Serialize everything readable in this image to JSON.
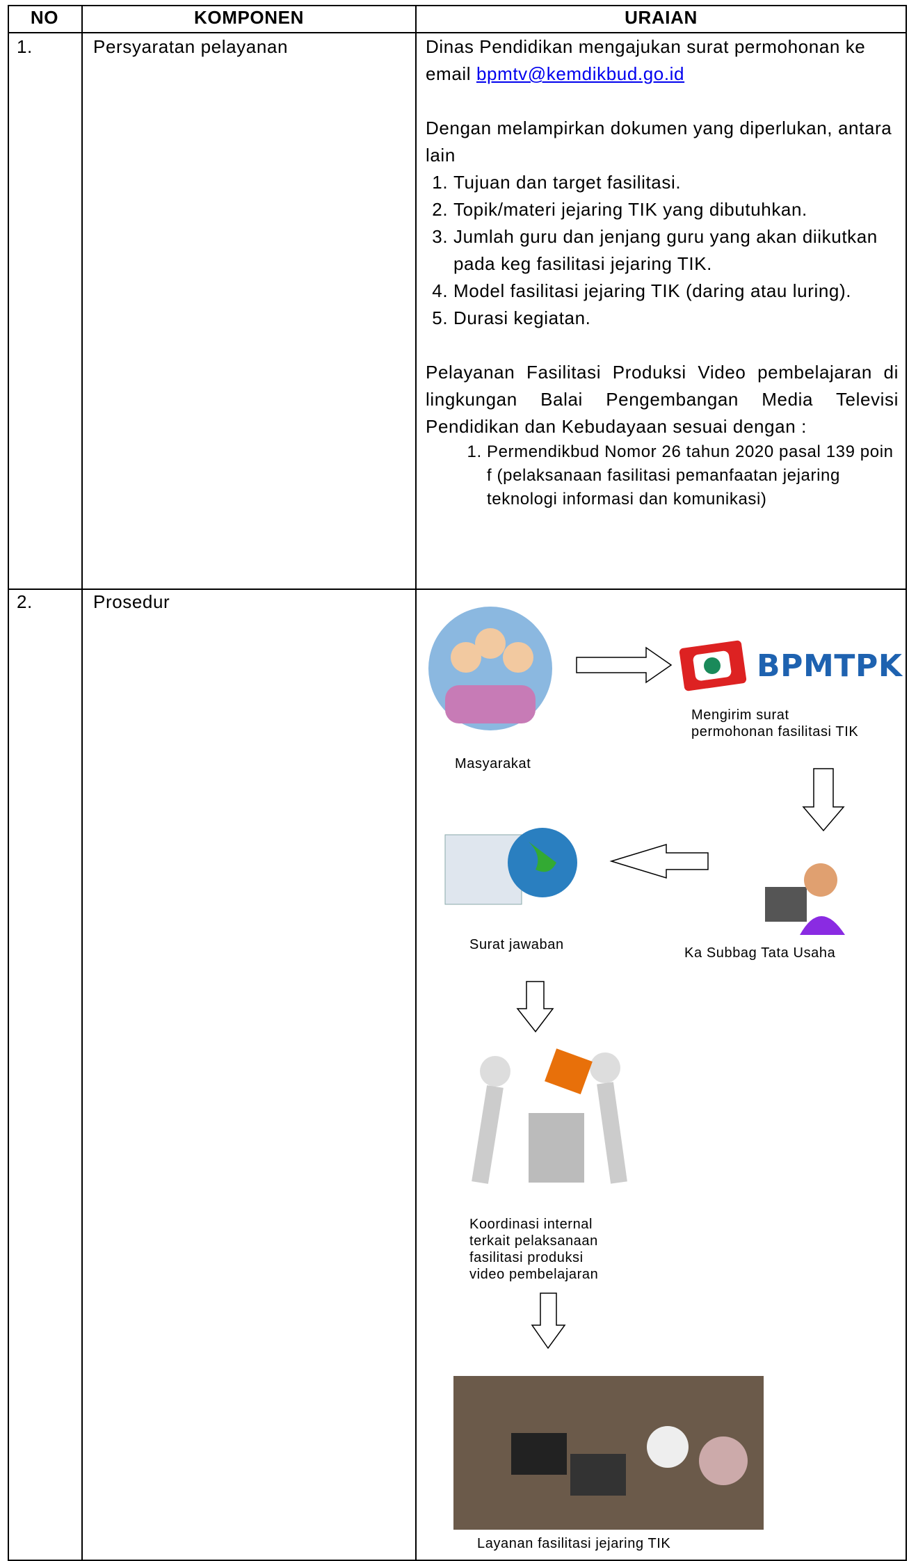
{
  "header": {
    "no": "NO",
    "komponen": "KOMPONEN",
    "uraian": "URAIAN"
  },
  "rows": [
    {
      "no": "1.",
      "komponen": "Persyaratan pelayanan",
      "uraian": {
        "intro": "Dinas Pendidikan mengajukan surat permohonan ke email",
        "email": "bpmtv@kemdikbud.go.id",
        "lead": "Dengan melampirkan dokumen  yang diperlukan, antara lain",
        "items": [
          "Tujuan dan target fasilitasi.",
          "Topik/materi jejaring TIK yang dibutuhkan.",
          "Jumlah guru dan jenjang guru yang akan diikutkan pada keg fasilitasi jejaring TIK.",
          "Model fasilitasi jejaring TIK (daring atau luring).",
          "Durasi kegiatan."
        ],
        "paragraph": "Pelayanan Fasilitasi Produksi Video pembelajaran di lingkungan Balai Pengembangan Media Televisi Pendidikan dan Kebudayaan sesuai dengan :",
        "refs": [
          "Permendikbud Nomor 26 tahun 2020 pasal 139 poin f (pelaksanaan fasilitasi pemanfaatan jejaring teknologi informasi dan komunikasi)"
        ]
      }
    },
    {
      "no": "2.",
      "komponen": "Prosedur",
      "flow": {
        "nodes": [
          {
            "label": "Masyarakat"
          },
          {
            "logo": "BPMTPK",
            "label": "Mengirim surat permohonan fasilitasi TIK"
          },
          {
            "label": "Ka Subbag Tata Usaha"
          },
          {
            "label": "Surat jawaban"
          },
          {
            "label": "Koordinasi internal terkait pelaksanaan fasilitasi produksi video pembelajaran"
          },
          {
            "label": "Layanan fasilitasi jejaring TIK"
          }
        ]
      }
    }
  ]
}
